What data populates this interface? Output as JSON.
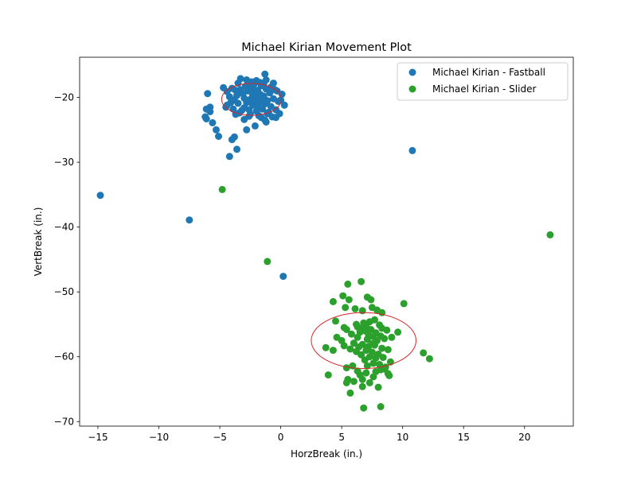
{
  "chart_data": {
    "type": "scatter",
    "title": "Michael Kirian Movement Plot",
    "xlabel": "HorzBreak (in.)",
    "ylabel": "VertBreak (in.)",
    "xlim": [
      -16.5,
      24.0
    ],
    "ylim": [
      -70.7,
      -13.8
    ],
    "xticks": [
      -15,
      -10,
      -5,
      0,
      5,
      10,
      15,
      20
    ],
    "yticks": [
      -70,
      -60,
      -50,
      -40,
      -30,
      -20
    ],
    "grid": false,
    "legend_position": "top-right",
    "series": [
      {
        "name": "Michael Kirian - Fastball",
        "color": "#1f77b4",
        "points": [
          [
            -14.8,
            -35.1
          ],
          [
            -7.5,
            -38.9
          ],
          [
            0.2,
            -47.6
          ],
          [
            10.8,
            -28.2
          ],
          [
            -4.2,
            -29.1
          ],
          [
            -3.6,
            -28.0
          ],
          [
            -4.0,
            -26.5
          ],
          [
            -3.8,
            -26.1
          ],
          [
            -5.1,
            -26.0
          ],
          [
            -5.3,
            -25.0
          ],
          [
            -5.6,
            -23.9
          ],
          [
            -6.1,
            -23.3
          ],
          [
            -6.2,
            -23.0
          ],
          [
            -5.8,
            -22.2
          ],
          [
            -6.1,
            -21.8
          ],
          [
            -5.8,
            -21.5
          ],
          [
            -6.0,
            -19.4
          ],
          [
            -4.7,
            -18.5
          ],
          [
            -4.5,
            -21.5
          ],
          [
            -2.8,
            -25.0
          ],
          [
            -2.1,
            -24.4
          ],
          [
            -1.2,
            -23.8
          ],
          [
            -4.0,
            -18.6
          ],
          [
            -3.7,
            -18.9
          ],
          [
            -3.3,
            -17.1
          ],
          [
            -2.8,
            -17.3
          ],
          [
            -2.4,
            -17.6
          ],
          [
            -1.7,
            -17.7
          ],
          [
            -1.2,
            -17.3
          ],
          [
            -1.3,
            -16.4
          ],
          [
            -0.8,
            -18.4
          ],
          [
            -0.3,
            -19.0
          ],
          [
            0.1,
            -19.5
          ],
          [
            0.3,
            -21.2
          ],
          [
            -0.1,
            -22.5
          ],
          [
            -0.7,
            -23.0
          ],
          [
            -1.6,
            -23.1
          ],
          [
            -2.6,
            -22.9
          ],
          [
            -3.4,
            -22.4
          ],
          [
            -3.9,
            -21.8
          ],
          [
            -4.4,
            -21.2
          ],
          [
            -3.8,
            -20.4
          ],
          [
            -3.6,
            -19.7
          ],
          [
            -3.5,
            -20.9
          ],
          [
            -3.3,
            -18.8
          ],
          [
            -3.1,
            -19.4
          ],
          [
            -3.0,
            -20.1
          ],
          [
            -3.0,
            -21.6
          ],
          [
            -2.9,
            -18.3
          ],
          [
            -2.8,
            -20.8
          ],
          [
            -2.7,
            -19.0
          ],
          [
            -2.6,
            -21.9
          ],
          [
            -2.5,
            -20.3
          ],
          [
            -2.4,
            -18.6
          ],
          [
            -2.3,
            -19.7
          ],
          [
            -2.3,
            -21.2
          ],
          [
            -2.2,
            -20.6
          ],
          [
            -2.1,
            -19.2
          ],
          [
            -2.0,
            -22.1
          ],
          [
            -2.0,
            -20.0
          ],
          [
            -1.9,
            -18.9
          ],
          [
            -1.9,
            -21.5
          ],
          [
            -1.8,
            -20.9
          ],
          [
            -1.7,
            -19.5
          ],
          [
            -1.6,
            -18.2
          ],
          [
            -1.5,
            -21.8
          ],
          [
            -1.5,
            -20.3
          ],
          [
            -1.4,
            -19.8
          ],
          [
            -1.3,
            -21.0
          ],
          [
            -1.2,
            -18.7
          ],
          [
            -1.1,
            -20.5
          ],
          [
            -1.0,
            -22.3
          ],
          [
            -0.9,
            -19.3
          ],
          [
            -0.8,
            -21.4
          ],
          [
            -0.6,
            -20.2
          ],
          [
            -0.5,
            -18.8
          ],
          [
            -0.4,
            -21.9
          ],
          [
            -0.2,
            -20.6
          ],
          [
            -3.2,
            -22.0
          ],
          [
            -2.5,
            -22.6
          ],
          [
            -1.8,
            -22.8
          ],
          [
            -1.1,
            -22.5
          ],
          [
            -2.7,
            -17.9
          ],
          [
            -2.0,
            -17.4
          ],
          [
            -3.5,
            -17.8
          ],
          [
            -4.2,
            -19.9
          ],
          [
            -4.1,
            -20.8
          ],
          [
            -0.6,
            -17.8
          ],
          [
            0.0,
            -20.4
          ],
          [
            -1.4,
            -17.9
          ],
          [
            -2.2,
            -18.0
          ],
          [
            -3.0,
            -23.4
          ],
          [
            -1.3,
            -23.5
          ],
          [
            -3.7,
            -22.6
          ],
          [
            -4.4,
            -19.1
          ],
          [
            -0.4,
            -23.1
          ]
        ]
      },
      {
        "name": "Michael Kirian - Slider",
        "color": "#2ca02c",
        "points": [
          [
            -4.8,
            -34.2
          ],
          [
            -1.1,
            -45.3
          ],
          [
            22.1,
            -41.2
          ],
          [
            5.5,
            -48.8
          ],
          [
            6.6,
            -48.4
          ],
          [
            4.3,
            -51.5
          ],
          [
            5.1,
            -50.6
          ],
          [
            5.6,
            -51.2
          ],
          [
            7.1,
            -50.8
          ],
          [
            7.4,
            -51.2
          ],
          [
            10.1,
            -51.8
          ],
          [
            5.3,
            -52.4
          ],
          [
            6.1,
            -52.6
          ],
          [
            6.7,
            -52.9
          ],
          [
            7.5,
            -52.4
          ],
          [
            7.9,
            -52.8
          ],
          [
            8.3,
            -53.2
          ],
          [
            4.5,
            -54.5
          ],
          [
            5.2,
            -55.5
          ],
          [
            5.4,
            -55.8
          ],
          [
            5.8,
            -56.5
          ],
          [
            6.2,
            -55.0
          ],
          [
            6.3,
            -55.4
          ],
          [
            6.5,
            -56.2
          ],
          [
            6.6,
            -55.6
          ],
          [
            6.8,
            -54.8
          ],
          [
            6.9,
            -56.0
          ],
          [
            7.0,
            -55.3
          ],
          [
            7.1,
            -57.3
          ],
          [
            7.2,
            -56.6
          ],
          [
            7.3,
            -54.6
          ],
          [
            7.4,
            -55.8
          ],
          [
            7.6,
            -56.9
          ],
          [
            7.7,
            -54.3
          ],
          [
            7.8,
            -56.3
          ],
          [
            7.9,
            -57.5
          ],
          [
            8.1,
            -55.1
          ],
          [
            8.2,
            -56.8
          ],
          [
            8.3,
            -55.6
          ],
          [
            8.5,
            -57.2
          ],
          [
            8.7,
            -55.9
          ],
          [
            9.1,
            -57.0
          ],
          [
            9.6,
            -56.2
          ],
          [
            4.6,
            -57.0
          ],
          [
            5.0,
            -57.5
          ],
          [
            5.2,
            -58.3
          ],
          [
            5.7,
            -58.8
          ],
          [
            6.0,
            -57.9
          ],
          [
            6.2,
            -59.2
          ],
          [
            6.4,
            -58.5
          ],
          [
            6.6,
            -59.7
          ],
          [
            6.7,
            -58.1
          ],
          [
            6.9,
            -60.5
          ],
          [
            7.0,
            -59.0
          ],
          [
            7.1,
            -61.4
          ],
          [
            7.2,
            -58.4
          ],
          [
            7.3,
            -60.0
          ],
          [
            7.5,
            -59.3
          ],
          [
            7.6,
            -61.0
          ],
          [
            7.7,
            -58.2
          ],
          [
            7.8,
            -60.2
          ],
          [
            8.0,
            -59.6
          ],
          [
            8.1,
            -61.2
          ],
          [
            8.3,
            -58.7
          ],
          [
            8.4,
            -60.1
          ],
          [
            8.6,
            -61.6
          ],
          [
            8.8,
            -58.9
          ],
          [
            9.0,
            -60.8
          ],
          [
            3.7,
            -58.6
          ],
          [
            4.3,
            -59.0
          ],
          [
            5.4,
            -61.7
          ],
          [
            5.9,
            -61.4
          ],
          [
            6.3,
            -62.2
          ],
          [
            6.5,
            -62.8
          ],
          [
            6.7,
            -63.5
          ],
          [
            7.0,
            -62.5
          ],
          [
            7.3,
            -64.0
          ],
          [
            7.6,
            -63.1
          ],
          [
            7.8,
            -62.3
          ],
          [
            8.0,
            -64.7
          ],
          [
            8.2,
            -62.0
          ],
          [
            8.5,
            -61.9
          ],
          [
            8.8,
            -62.6
          ],
          [
            8.9,
            -62.9
          ],
          [
            5.5,
            -63.5
          ],
          [
            5.4,
            -64.0
          ],
          [
            6.0,
            -63.8
          ],
          [
            6.7,
            -64.6
          ],
          [
            3.9,
            -62.8
          ],
          [
            5.7,
            -65.6
          ],
          [
            6.8,
            -67.9
          ],
          [
            8.2,
            -67.7
          ],
          [
            11.7,
            -59.4
          ],
          [
            12.2,
            -60.3
          ],
          [
            6.3,
            -57.0
          ],
          [
            7.5,
            -58.0
          ]
        ]
      }
    ],
    "ellipses": [
      {
        "center": [
          -2.4,
          -20.3
        ],
        "width": 4.9,
        "height": 4.9,
        "color": "#d62728"
      },
      {
        "center": [
          6.8,
          -57.5
        ],
        "width": 8.6,
        "height": 8.6,
        "color": "#d62728"
      }
    ]
  }
}
